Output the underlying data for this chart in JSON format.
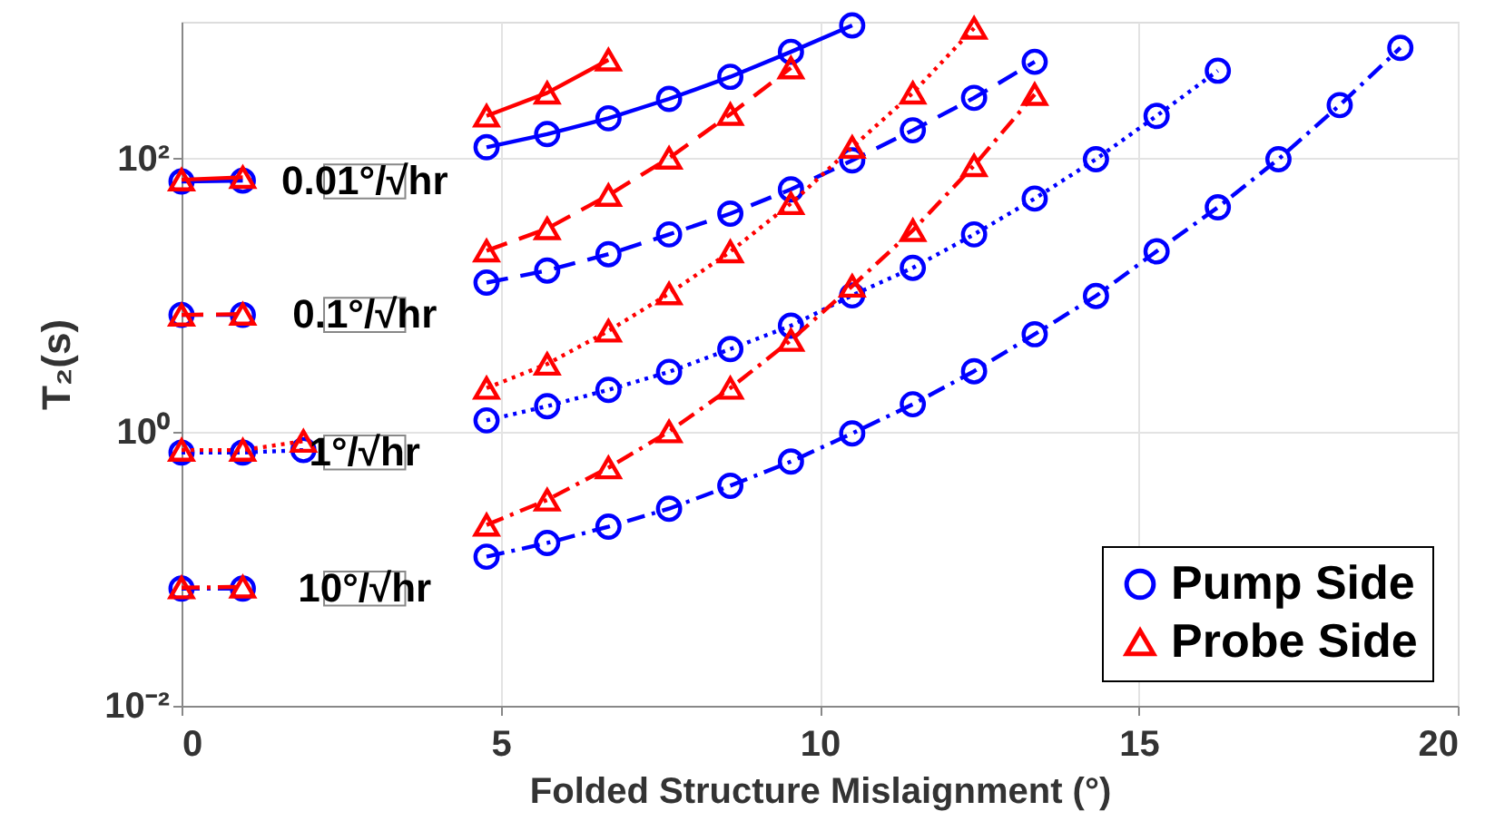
{
  "chart_data": {
    "type": "line",
    "xlabel": "Folded Structure Mislaignment (°)",
    "ylabel": "T₂(s)",
    "x": [
      0,
      0.96,
      1.91,
      2.87,
      3.82,
      4.78,
      5.73,
      6.69,
      7.64,
      8.6,
      9.55,
      10.51,
      11.46,
      12.42,
      13.37,
      14.33,
      15.28,
      16.24,
      17.19,
      18.15,
      19.1
    ],
    "series": [
      {
        "name": "Pump Side",
        "color": "#0000ff",
        "marker": "circle",
        "line_style": "solid",
        "values": [
          68,
          69,
          null,
          null,
          null,
          121,
          151,
          197,
          273,
          396,
          603,
          940,
          null,
          null,
          null,
          null,
          null,
          null,
          null,
          null,
          null
        ]
      },
      {
        "color": "#0000ff",
        "marker": "circle",
        "line_style": "dashed",
        "values": [
          7.2,
          7.2,
          null,
          null,
          null,
          12.4,
          15.2,
          20,
          27.9,
          39.6,
          59.6,
          97,
          161,
          278,
          510,
          null,
          null,
          null,
          null,
          null,
          null
        ]
      },
      {
        "color": "#0000ff",
        "marker": "circle",
        "line_style": "dotted",
        "values": [
          0.71,
          0.71,
          0.74,
          null,
          null,
          1.22,
          1.55,
          2.04,
          2.76,
          4.05,
          6,
          10,
          15.9,
          27.9,
          51,
          99,
          205,
          439,
          null,
          null,
          null
        ]
      },
      {
        "color": "#0000ff",
        "marker": "circle",
        "line_style": "dashdot",
        "values": [
          0.072,
          0.072,
          null,
          null,
          null,
          0.123,
          0.155,
          0.204,
          0.276,
          0.406,
          0.61,
          0.98,
          1.6,
          2.79,
          5.2,
          9.9,
          21,
          44,
          99,
          246,
          645
        ]
      },
      {
        "name": "Probe Side",
        "color": "#ff0000",
        "marker": "triangle",
        "line_style": "solid",
        "values": [
          70,
          73,
          null,
          null,
          null,
          205,
          302,
          527,
          null,
          null,
          null,
          null,
          null,
          null,
          null,
          null,
          null,
          null,
          null,
          null,
          null
        ]
      },
      {
        "color": "#ff0000",
        "marker": "triangle",
        "line_style": "dashed",
        "values": [
          7.2,
          7.3,
          null,
          null,
          null,
          21.2,
          30.8,
          54,
          101,
          211,
          461,
          null,
          null,
          null,
          null,
          null,
          null,
          null,
          null,
          null,
          null
        ]
      },
      {
        "color": "#ff0000",
        "marker": "triangle",
        "line_style": "dotted",
        "values": [
          0.74,
          0.74,
          0.86,
          null,
          null,
          2.1,
          3.15,
          5.5,
          10.3,
          20.9,
          47,
          121,
          302,
          900,
          null,
          null,
          null,
          null,
          null,
          null,
          null
        ]
      },
      {
        "color": "#ff0000",
        "marker": "triangle",
        "line_style": "dashdot",
        "values": [
          0.073,
          0.074,
          null,
          null,
          null,
          0.21,
          0.32,
          0.55,
          1.01,
          2.1,
          4.7,
          11.7,
          29.9,
          89,
          295,
          null,
          null,
          null,
          null,
          null,
          null
        ]
      }
    ],
    "annotations": [
      "0.01°/√hr",
      "0.1°/√hr",
      "1°/√hr",
      "10°/√hr"
    ],
    "log": "y",
    "xlim": [
      0,
      20
    ],
    "xticks": [
      0,
      5,
      10,
      15,
      20
    ],
    "ylim": [
      0.01,
      1000
    ],
    "yticks": [
      {
        "value": 0.01,
        "label": "10⁻²"
      },
      {
        "value": 1,
        "label": "10⁰"
      },
      {
        "value": 100,
        "label": "10²"
      }
    ],
    "grid": true,
    "legend": "bottom right"
  }
}
